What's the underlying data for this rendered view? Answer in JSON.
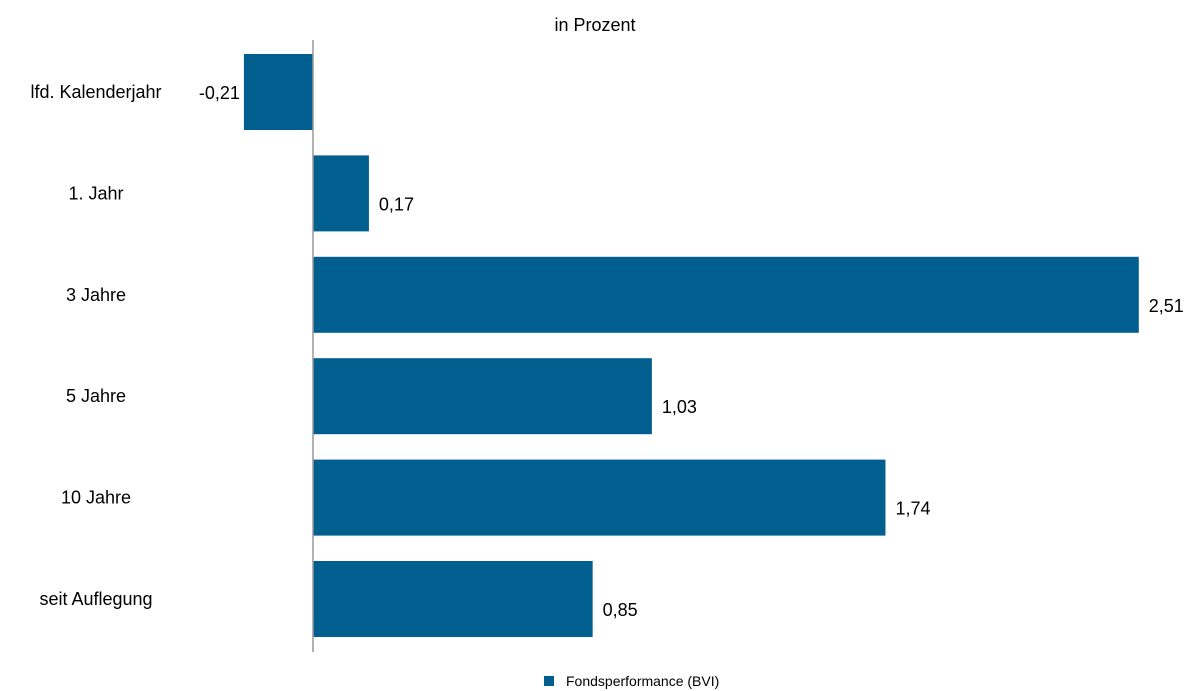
{
  "chart_data": {
    "type": "bar",
    "orientation": "horizontal",
    "title": "in Prozent",
    "categories": [
      "lfd. Kalenderjahr",
      "1. Jahr",
      "3 Jahre",
      "5 Jahre",
      "10 Jahre",
      "seit Auflegung"
    ],
    "series": [
      {
        "name": "Fondsperformance (BVI)",
        "values": [
          -0.21,
          0.17,
          2.51,
          1.03,
          1.74,
          0.85
        ],
        "value_labels": [
          "-0,21",
          "0,17",
          "2,51",
          "1,03",
          "1,74",
          "0,85"
        ],
        "color": "#005f8f"
      }
    ],
    "xlim": [
      -0.21,
      2.51
    ],
    "grid": false,
    "legend": "bottom"
  }
}
